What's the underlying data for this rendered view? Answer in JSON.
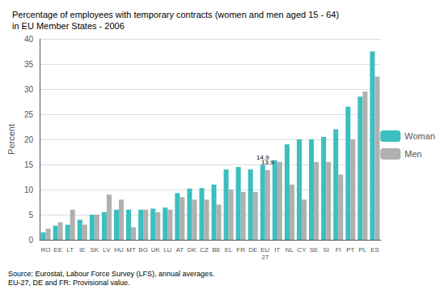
{
  "chart_data": {
    "type": "bar",
    "title": "Percentage of employees with temporary contracts (women and men aged 15 - 64)\nin EU Member States - 2006",
    "ylabel": "Percent",
    "source": "Source: Eurostat, Labour Force Survey (LFS), annual averages.\nEU-27, DE and FR: Provisional value.",
    "categories": [
      "RO",
      "EE",
      "LT",
      "IE",
      "SK",
      "LV",
      "HU",
      "MT",
      "BG",
      "UK",
      "LU",
      "AT",
      "DK",
      "CZ",
      "BE",
      "EL",
      "FR",
      "DE",
      "EU\n27",
      "IT",
      "NL",
      "CY",
      "SE",
      "SI",
      "FI",
      "PT",
      "PL",
      "ES"
    ],
    "series": [
      {
        "name": "Woman",
        "color": "#3bbfbf",
        "values": [
          1.5,
          2.8,
          3.0,
          4.0,
          5.0,
          5.5,
          6.0,
          6.0,
          6.0,
          6.2,
          6.4,
          9.3,
          10.2,
          10.3,
          11.0,
          14.0,
          14.5,
          14.0,
          14.9,
          15.8,
          19.0,
          20.0,
          20.0,
          20.5,
          22.0,
          26.5,
          28.5,
          37.5
        ]
      },
      {
        "name": "Men",
        "color": "#b0b0b0",
        "values": [
          2.2,
          3.5,
          6.0,
          3.0,
          5.0,
          9.0,
          8.0,
          2.5,
          6.0,
          5.5,
          6.0,
          8.5,
          8.0,
          8.0,
          7.0,
          10.0,
          9.5,
          9.5,
          13.9,
          15.5,
          11.0,
          8.0,
          15.5,
          15.5,
          13.0,
          20.0,
          29.5,
          32.5
        ]
      }
    ],
    "annotations": [
      {
        "text": "14.9",
        "category": "EU\n27",
        "series": "Woman"
      },
      {
        "text": "13.9",
        "category": "EU\n27",
        "series": "Men"
      }
    ],
    "ylim": [
      0,
      40
    ],
    "yticks": [
      0,
      5,
      10,
      15,
      20,
      25,
      30,
      35,
      40
    ],
    "grid": true,
    "legend": "right"
  }
}
